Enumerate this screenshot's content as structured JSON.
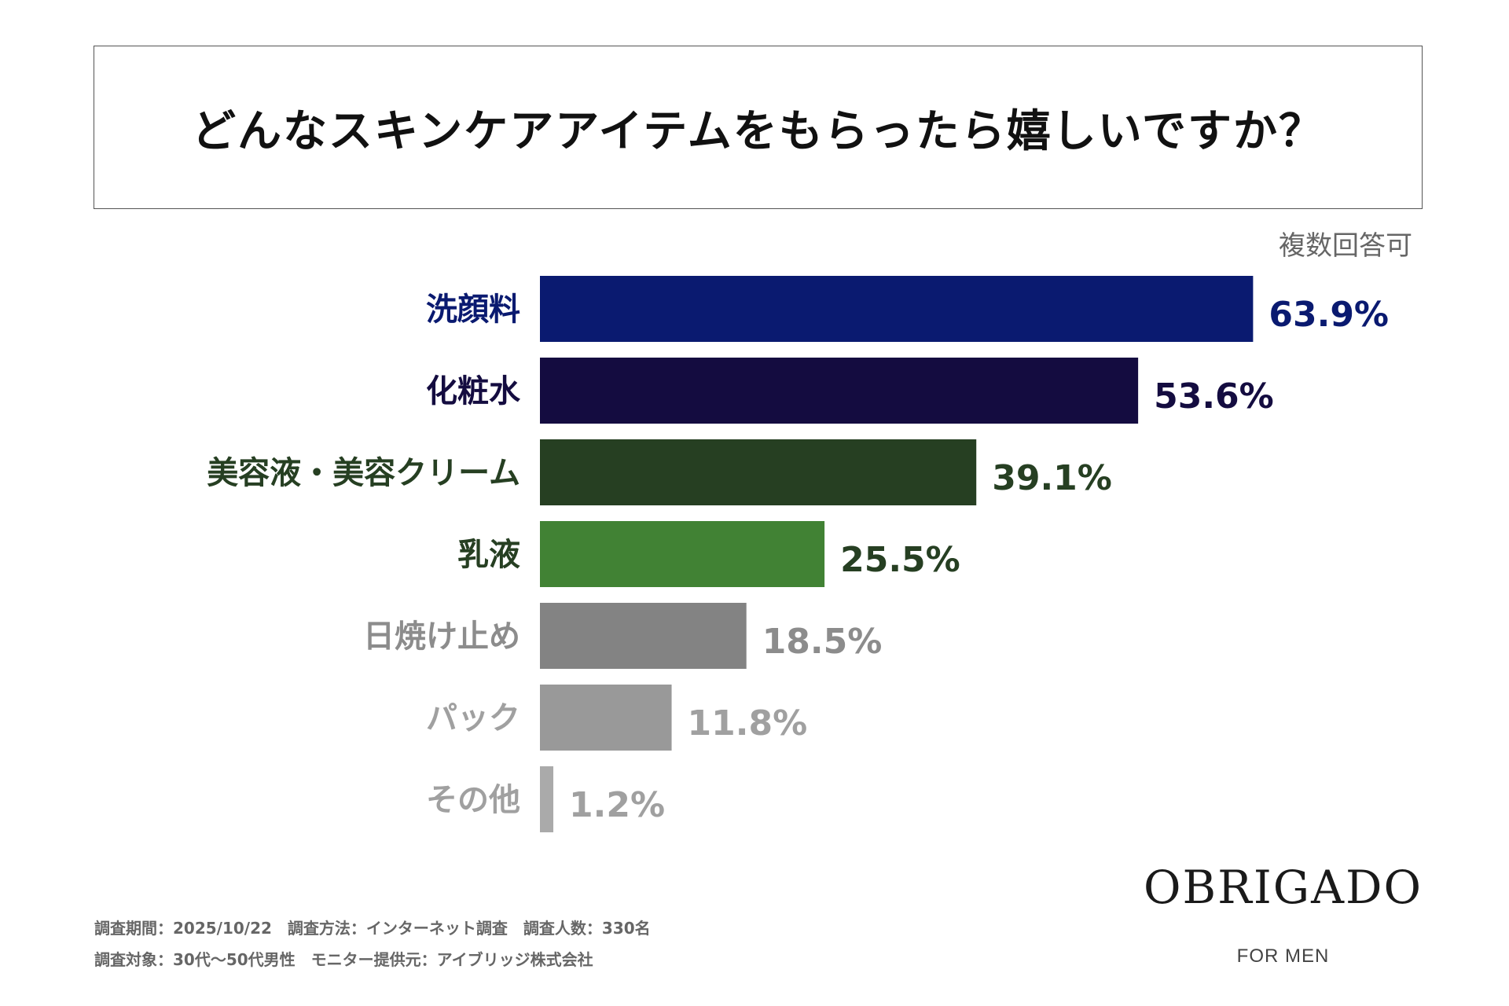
{
  "chart_data": {
    "type": "bar",
    "orientation": "horizontal",
    "title": "どんなスキンケアアイテムをもらったら嬉しいですか？",
    "note": "複数回答可",
    "categories": [
      "洗顔料",
      "化粧水",
      "美容液・美容クリーム",
      "乳液",
      "日焼け止め",
      "パック",
      "その他"
    ],
    "values": [
      63.9,
      53.6,
      39.1,
      25.5,
      18.5,
      11.8,
      1.2
    ],
    "value_labels": [
      "63.9%",
      "53.6%",
      "39.1%",
      "25.5%",
      "18.5%",
      "11.8%",
      "1.2%"
    ],
    "bar_colors": [
      "#0a1a70",
      "#140c40",
      "#263f22",
      "#418234",
      "#838383",
      "#999999",
      "#aaaaaa"
    ],
    "label_colors": [
      "#0a1a70",
      "#140c40",
      "#263f22",
      "#263f22",
      "#8c8c8c",
      "#a0a0a0",
      "#a0a0a0"
    ],
    "xlim": [
      0,
      100
    ],
    "xlabel": "",
    "ylabel": ""
  },
  "footer": {
    "line1": "調査期間：2025/10/22　調査方法：インターネット調査　調査人数：330名",
    "line2": "調査対象：30代〜50代男性　モニター提供元：アイブリッジ株式会社"
  },
  "brand": {
    "name": "OBRIGADO",
    "sub": "FOR MEN"
  }
}
